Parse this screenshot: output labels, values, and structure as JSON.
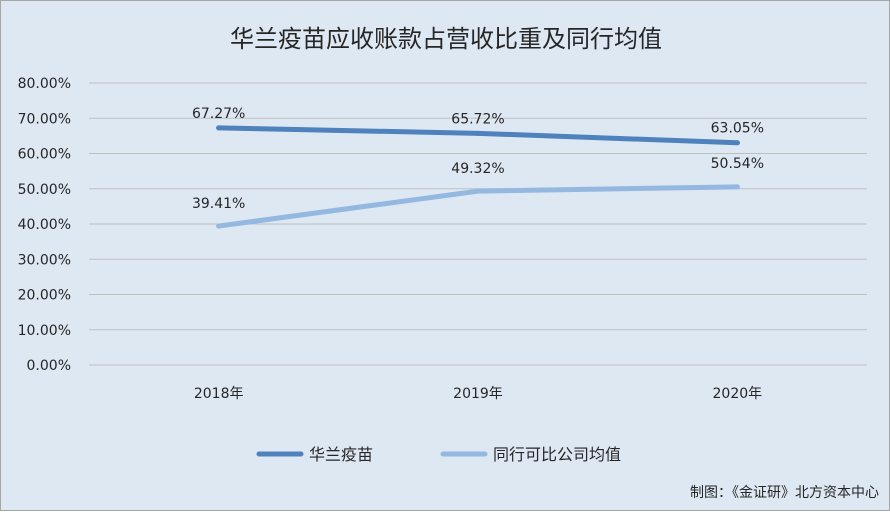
{
  "chart_data": {
    "type": "line",
    "title": "华兰疫苗应收账款占营收比重及同行均值",
    "categories": [
      "2018年",
      "2019年",
      "2020年"
    ],
    "series": [
      {
        "name": "华兰疫苗",
        "values": [
          67.27,
          65.72,
          63.05
        ],
        "labels": [
          "67.27%",
          "65.72%",
          "63.05%"
        ],
        "color": "#4f81bd"
      },
      {
        "name": "同行可比公司均值",
        "values": [
          39.41,
          49.32,
          50.54
        ],
        "labels": [
          "39.41%",
          "49.32%",
          "50.54%"
        ],
        "color": "#95b8e0"
      }
    ],
    "ylim": [
      0,
      80
    ],
    "yticks": [
      "0.00%",
      "10.00%",
      "20.00%",
      "30.00%",
      "40.00%",
      "50.00%",
      "60.00%",
      "70.00%",
      "80.00%"
    ],
    "grid": true,
    "legend": "bottom"
  },
  "credit": "制图：《金证研》北方资本中心"
}
